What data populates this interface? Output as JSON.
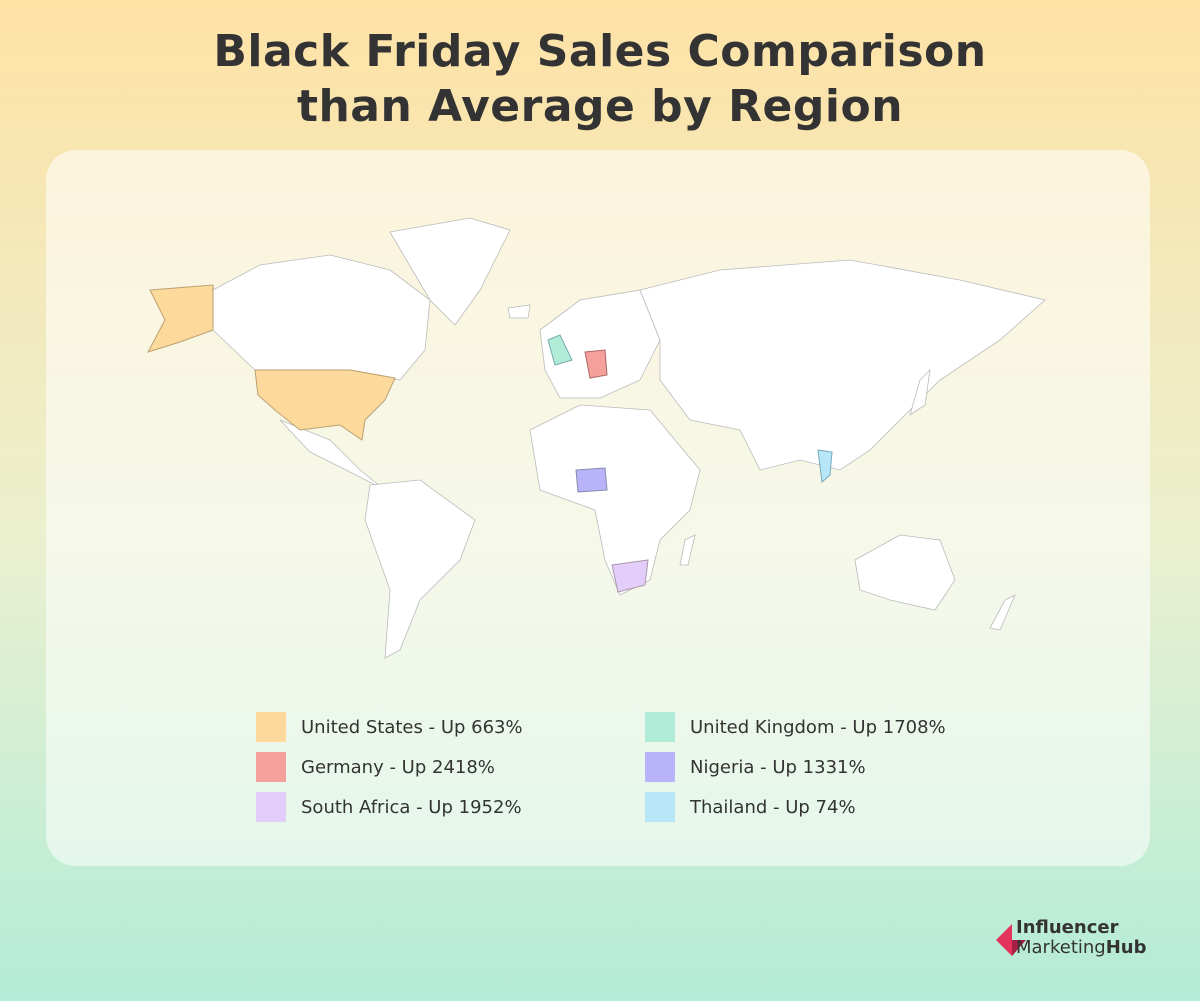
{
  "header": {
    "title_lines": [
      "Black Friday Sales Comparison",
      "than Average by Region"
    ]
  },
  "legend": {
    "items": [
      {
        "label": "United States - Up 663%",
        "color": "#fdd99b"
      },
      {
        "label": "Germany - Up 2418%",
        "color": "#f5a09a"
      },
      {
        "label": "South Africa - Up 1952%",
        "color": "#e2cdfb"
      },
      {
        "label": "United Kingdom - Up 1708%",
        "color": "#b0ecd8"
      },
      {
        "label": "Nigeria - Up 1331%",
        "color": "#b9b4fa"
      },
      {
        "label": "Thailand - Up 74%",
        "color": "#b7e6f8"
      }
    ]
  },
  "logo": {
    "line1": "Influencer",
    "line2a": "Marketing",
    "line2b": "Hub"
  }
}
